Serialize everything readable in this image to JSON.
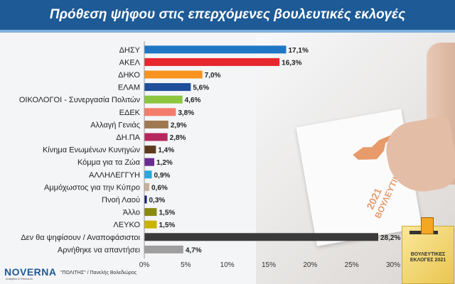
{
  "title": "Πρόθεση ψήφου στις επερχόμενες βουλευτικές εκλογές",
  "branding": {
    "logo": "NOVERNA",
    "logo_sub": "Analytics & Research",
    "source": "\"ΠΟΛΙΤΗΣ\" / Πανελής Βολεδιώρος",
    "ballot_text": "ΒΟΥΛΕΥΤΙΚΕΣ ΕΚΛΟΓΕΣ",
    "ballot_year": "2021",
    "box_text": "ΒΟΥΛΕΥΤΙΚΕΣ ΕΚΛΟΓΕΣ 2021"
  },
  "chart_data": {
    "type": "bar",
    "orientation": "horizontal",
    "categories": [
      "ΔΗΣΥ",
      "ΑΚΕΛ",
      "ΔΗΚΟ",
      "ΕΛΑΜ",
      "ΟΙΚΟΛΟΓΟΙ - Συνεργασία Πολιτών",
      "ΕΔΕΚ",
      "Αλλαγή Γενιάς",
      "ΔΗ.ΠΑ",
      "Κίνημα Ενωμένων Κυνηγών",
      "Κόμμα για τα Ζώα",
      "ΑΛΛΗΛΕΓΓΥΗ",
      "Αμμόχωστος για την Κύπρο",
      "Πνοή Λαού",
      "Άλλο",
      "ΛΕΥΚΟ",
      "Δεν θα ψηφίσουν / Αναποφάσιστοι",
      "Αρνήθηκε να απαντήσει"
    ],
    "values": [
      17.1,
      16.3,
      7.0,
      5.6,
      4.6,
      3.8,
      2.9,
      2.8,
      1.4,
      1.2,
      0.9,
      0.6,
      0.3,
      1.5,
      1.5,
      28.2,
      4.7
    ],
    "value_labels": [
      "17,1%",
      "16,3%",
      "7,0%",
      "5,6%",
      "4,6%",
      "3,8%",
      "2,9%",
      "2,8%",
      "1,4%",
      "1,2%",
      "0,9%",
      "0,6%",
      "0,3%",
      "1,5%",
      "1,5%",
      "28,2%",
      "4,7%"
    ],
    "colors": [
      "#1f77c4",
      "#e8262d",
      "#f7931e",
      "#1f4e9b",
      "#8cc63f",
      "#f47c6a",
      "#a07850",
      "#b5285e",
      "#5c3a1e",
      "#6a2c91",
      "#29a8e0",
      "#c7b29b",
      "#1a1a7a",
      "#8a8a10",
      "#c8b400",
      "#3a3a3a",
      "#9e9e9e"
    ],
    "xlim": [
      0,
      30
    ],
    "x_ticks": [
      "0%",
      "5%",
      "10%",
      "15%",
      "20%",
      "25%",
      "30%"
    ],
    "grid": false
  }
}
